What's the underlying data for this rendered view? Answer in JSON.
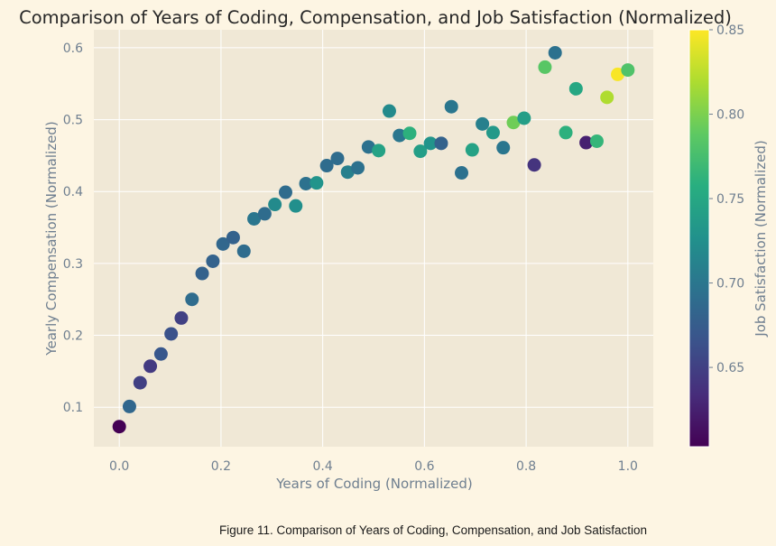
{
  "chart_data": {
    "type": "scatter",
    "title": "Comparison of Years of Coding, Compensation, and Job Satisfaction (Normalized)",
    "xlabel": "Years of Coding (Normalized)",
    "ylabel": "Yearly Compensation (Normalized)",
    "colorbar_label": "Job Satisfaction (Normalized)",
    "caption": "Figure 11. Comparison of Years of Coding, Compensation, and Job Satisfaction",
    "colormap": "viridis",
    "xlim": [
      -0.05,
      1.05
    ],
    "ylim": [
      0.045,
      0.625
    ],
    "clim": [
      0.603,
      0.85
    ],
    "xticks": [
      0.0,
      0.2,
      0.4,
      0.6,
      0.8,
      1.0
    ],
    "xtick_labels": [
      "0.0",
      "0.2",
      "0.4",
      "0.6",
      "0.8",
      "1.0"
    ],
    "yticks": [
      0.1,
      0.2,
      0.3,
      0.4,
      0.5,
      0.6
    ],
    "ytick_labels": [
      "0.1",
      "0.2",
      "0.3",
      "0.4",
      "0.5",
      "0.6"
    ],
    "cticks": [
      0.65,
      0.7,
      0.75,
      0.8,
      0.85
    ],
    "ctick_labels": [
      "0.65",
      "0.70",
      "0.75",
      "0.80",
      "0.85"
    ],
    "grid": true,
    "points": [
      {
        "x": 0.0,
        "y": 0.073,
        "c": 0.603
      },
      {
        "x": 0.02,
        "y": 0.101,
        "c": 0.685
      },
      {
        "x": 0.041,
        "y": 0.134,
        "c": 0.65
      },
      {
        "x": 0.061,
        "y": 0.157,
        "c": 0.645
      },
      {
        "x": 0.082,
        "y": 0.174,
        "c": 0.67
      },
      {
        "x": 0.102,
        "y": 0.202,
        "c": 0.665
      },
      {
        "x": 0.122,
        "y": 0.224,
        "c": 0.65
      },
      {
        "x": 0.143,
        "y": 0.25,
        "c": 0.69
      },
      {
        "x": 0.163,
        "y": 0.286,
        "c": 0.68
      },
      {
        "x": 0.184,
        "y": 0.303,
        "c": 0.68
      },
      {
        "x": 0.204,
        "y": 0.327,
        "c": 0.685
      },
      {
        "x": 0.224,
        "y": 0.336,
        "c": 0.68
      },
      {
        "x": 0.245,
        "y": 0.317,
        "c": 0.69
      },
      {
        "x": 0.265,
        "y": 0.362,
        "c": 0.7
      },
      {
        "x": 0.286,
        "y": 0.369,
        "c": 0.69
      },
      {
        "x": 0.306,
        "y": 0.382,
        "c": 0.72
      },
      {
        "x": 0.327,
        "y": 0.399,
        "c": 0.69
      },
      {
        "x": 0.347,
        "y": 0.38,
        "c": 0.725
      },
      {
        "x": 0.367,
        "y": 0.411,
        "c": 0.695
      },
      {
        "x": 0.388,
        "y": 0.412,
        "c": 0.73
      },
      {
        "x": 0.408,
        "y": 0.436,
        "c": 0.69
      },
      {
        "x": 0.429,
        "y": 0.446,
        "c": 0.69
      },
      {
        "x": 0.449,
        "y": 0.427,
        "c": 0.71
      },
      {
        "x": 0.469,
        "y": 0.433,
        "c": 0.695
      },
      {
        "x": 0.49,
        "y": 0.462,
        "c": 0.695
      },
      {
        "x": 0.51,
        "y": 0.457,
        "c": 0.745
      },
      {
        "x": 0.531,
        "y": 0.512,
        "c": 0.72
      },
      {
        "x": 0.551,
        "y": 0.478,
        "c": 0.7
      },
      {
        "x": 0.571,
        "y": 0.481,
        "c": 0.76
      },
      {
        "x": 0.592,
        "y": 0.456,
        "c": 0.74
      },
      {
        "x": 0.612,
        "y": 0.467,
        "c": 0.73
      },
      {
        "x": 0.633,
        "y": 0.467,
        "c": 0.68
      },
      {
        "x": 0.653,
        "y": 0.518,
        "c": 0.7
      },
      {
        "x": 0.673,
        "y": 0.426,
        "c": 0.695
      },
      {
        "x": 0.694,
        "y": 0.458,
        "c": 0.745
      },
      {
        "x": 0.714,
        "y": 0.494,
        "c": 0.71
      },
      {
        "x": 0.735,
        "y": 0.482,
        "c": 0.735
      },
      {
        "x": 0.755,
        "y": 0.461,
        "c": 0.7
      },
      {
        "x": 0.775,
        "y": 0.496,
        "c": 0.795
      },
      {
        "x": 0.796,
        "y": 0.502,
        "c": 0.74
      },
      {
        "x": 0.816,
        "y": 0.437,
        "c": 0.64
      },
      {
        "x": 0.837,
        "y": 0.573,
        "c": 0.785
      },
      {
        "x": 0.857,
        "y": 0.593,
        "c": 0.695
      },
      {
        "x": 0.878,
        "y": 0.482,
        "c": 0.76
      },
      {
        "x": 0.898,
        "y": 0.543,
        "c": 0.75
      },
      {
        "x": 0.918,
        "y": 0.468,
        "c": 0.625
      },
      {
        "x": 0.939,
        "y": 0.47,
        "c": 0.765
      },
      {
        "x": 0.959,
        "y": 0.531,
        "c": 0.82
      },
      {
        "x": 0.98,
        "y": 0.563,
        "c": 0.848
      },
      {
        "x": 1.0,
        "y": 0.569,
        "c": 0.78
      }
    ]
  }
}
